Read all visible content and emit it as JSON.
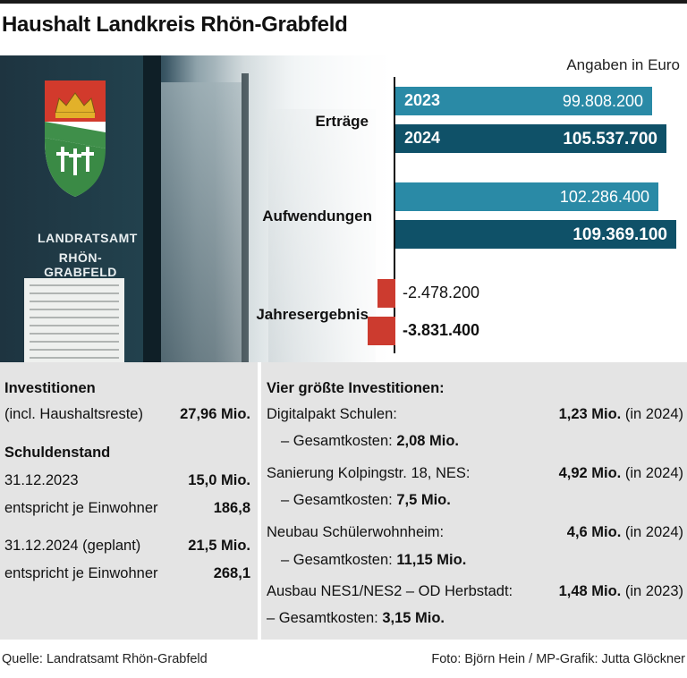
{
  "title": "Haushalt Landkreis Rhön-Grabfeld",
  "photo": {
    "sign_line1": "LANDRATSAMT",
    "sign_line2": "RHÖN-GRABFELD"
  },
  "chart_data": {
    "type": "bar",
    "unit_note": "Angaben in Euro",
    "categories": [
      "Erträge",
      "Aufwendungen",
      "Jahresergebnis"
    ],
    "series": [
      {
        "name": "2023",
        "values": [
          99808200,
          102286400,
          -2478200
        ],
        "labels": [
          "99.808.200",
          "102.286.400",
          "-2.478.200"
        ],
        "color": "#2a8aa6"
      },
      {
        "name": "2024",
        "values": [
          105537700,
          109369100,
          -3831400
        ],
        "labels": [
          "105.537.700",
          "109.369.100",
          "-3.831.400"
        ],
        "color": "#0f5168"
      }
    ],
    "negative_color": "#cc3b2f",
    "xlim": [
      0,
      112000000
    ]
  },
  "left_panel": {
    "investitionen": {
      "heading": "Investitionen",
      "label": "(incl. Haushaltsreste)",
      "value": "27,96 Mio."
    },
    "schuldenstand": {
      "heading": "Schuldenstand",
      "rows": [
        {
          "label": "31.12.2023",
          "value": "15,0 Mio."
        },
        {
          "label": "entspricht je Einwohner",
          "value": "186,8"
        },
        {
          "label": "31.12.2024 (geplant)",
          "value": "21,5 Mio."
        },
        {
          "label": "entspricht je Einwohner",
          "value": "268,1"
        }
      ]
    }
  },
  "right_panel": {
    "heading": "Vier größte Investitionen:",
    "items": [
      {
        "name": "Digitalpakt Schulen:",
        "amount": "1,23 Mio.",
        "year": "(in 2024)",
        "cost_label": "– Gesamtkosten:",
        "cost": "2,08 Mio."
      },
      {
        "name": "Sanierung Kolpingstr. 18, NES:",
        "amount": "4,92 Mio.",
        "year": "(in 2024)",
        "cost_label": "– Gesamtkosten:",
        "cost": "7,5 Mio."
      },
      {
        "name": "Neubau Schülerwohnheim:",
        "amount": "4,6 Mio.",
        "year": "(in 2024)",
        "cost_label": "– Gesamtkosten:",
        "cost": "11,15 Mio."
      },
      {
        "name": "Ausbau NES1/NES2 – OD Herbstadt:",
        "amount": "1,48 Mio.",
        "year": "(in 2023)",
        "cost_label": "– Gesamtkosten:",
        "cost": "3,15 Mio."
      }
    ]
  },
  "footer": {
    "source": "Quelle: Landratsamt Rhön-Grabfeld",
    "credit": "Foto: Björn Hein / MP-Grafik: Jutta Glöckner"
  }
}
